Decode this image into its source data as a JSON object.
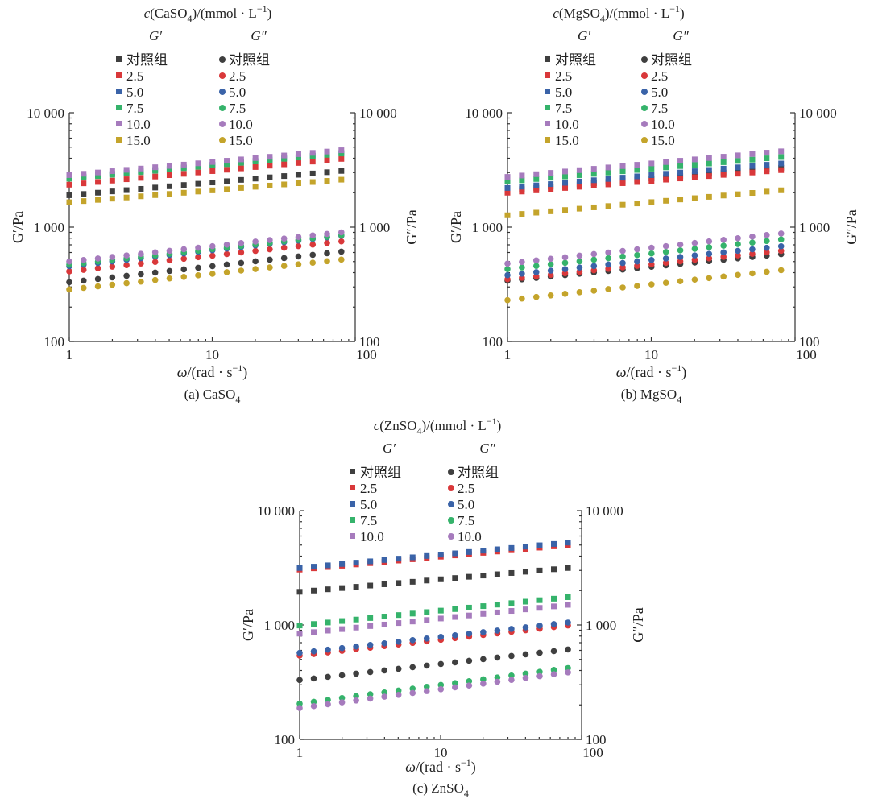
{
  "chart_data": [
    {
      "type": "scatter",
      "panel": "(a) CaSO4",
      "caption": "(a) CaSO",
      "caption_sub": "4",
      "legend_title_parts": [
        "c",
        "(CaSO",
        "4",
        ")/(mmol · L",
        "−1",
        ")"
      ],
      "legend_headers": [
        "G′",
        "G″"
      ],
      "ylabel_left": "G′/Pa",
      "ylabel_right": "G″/Pa",
      "xlabel_parts": [
        "ω",
        "/(rad · s",
        "−1",
        ")"
      ],
      "x_scale": "log",
      "y_scale": "log",
      "xlim": [
        1,
        100
      ],
      "ylim": [
        100,
        10000
      ],
      "xticks": [
        1,
        10,
        100
      ],
      "xtick_labels": [
        "1",
        "10",
        "100"
      ],
      "yticks": [
        100,
        1000,
        10000
      ],
      "ytick_labels": [
        "100",
        "1 000",
        "10 000"
      ],
      "omega_range": [
        1,
        80
      ],
      "series": [
        {
          "name": "对照组",
          "color": "#3f3f3f",
          "G_prime": [
            1900,
            3100
          ],
          "G_double_prime": [
            330,
            610
          ]
        },
        {
          "name": "2.5",
          "color": "#d9383a",
          "G_prime": [
            2350,
            3950
          ],
          "G_double_prime": [
            410,
            750
          ]
        },
        {
          "name": "5.0",
          "color": "#3a63a8",
          "G_prime": [
            2700,
            4450
          ],
          "G_double_prime": [
            455,
            840
          ]
        },
        {
          "name": "7.5",
          "color": "#35b36b",
          "G_prime": [
            2650,
            4400
          ],
          "G_double_prime": [
            470,
            850
          ]
        },
        {
          "name": "10.0",
          "color": "#a67bbd",
          "G_prime": [
            2850,
            4700
          ],
          "G_double_prime": [
            500,
            900
          ]
        },
        {
          "name": "15.0",
          "color": "#c4a42b",
          "G_prime": [
            1650,
            2600
          ],
          "G_double_prime": [
            285,
            520
          ]
        }
      ]
    },
    {
      "type": "scatter",
      "panel": "(b) MgSO4",
      "caption": "(b) MgSO",
      "caption_sub": "4",
      "legend_title_parts": [
        "c",
        "(MgSO",
        "4",
        ")/(mmol · L",
        "−1",
        ")"
      ],
      "legend_headers": [
        "G′",
        "G″"
      ],
      "ylabel_left": "G′/Pa",
      "ylabel_right": "G″/Pa",
      "xlabel_parts": [
        "ω",
        "/(rad · s",
        "−1",
        ")"
      ],
      "x_scale": "log",
      "y_scale": "log",
      "xlim": [
        1,
        100
      ],
      "ylim": [
        100,
        10000
      ],
      "xticks": [
        1,
        10,
        100
      ],
      "xtick_labels": [
        "1",
        "10",
        "100"
      ],
      "yticks": [
        100,
        1000,
        10000
      ],
      "ytick_labels": [
        "100",
        "1 000",
        "10 000"
      ],
      "omega_range": [
        1,
        80
      ],
      "series": [
        {
          "name": "对照组",
          "color": "#3f3f3f",
          "G_prime": [
            2100,
            3300
          ],
          "G_double_prime": [
            340,
            580
          ]
        },
        {
          "name": "2.5",
          "color": "#d9383a",
          "G_prime": [
            2000,
            3150
          ],
          "G_double_prime": [
            350,
            620
          ]
        },
        {
          "name": "5.0",
          "color": "#3a63a8",
          "G_prime": [
            2200,
            3600
          ],
          "G_double_prime": [
            380,
            680
          ]
        },
        {
          "name": "7.5",
          "color": "#35b36b",
          "G_prime": [
            2500,
            4100
          ],
          "G_double_prime": [
            430,
            780
          ]
        },
        {
          "name": "10.0",
          "color": "#a67bbd",
          "G_prime": [
            2750,
            4600
          ],
          "G_double_prime": [
            480,
            880
          ]
        },
        {
          "name": "15.0",
          "color": "#c4a42b",
          "G_prime": [
            1270,
            2100
          ],
          "G_double_prime": [
            230,
            420
          ]
        }
      ]
    },
    {
      "type": "scatter",
      "panel": "(c) ZnSO4",
      "caption": "(c) ZnSO",
      "caption_sub": "4",
      "legend_title_parts": [
        "c",
        "(ZnSO",
        "4",
        ")/(mmol · L",
        "−1",
        ")"
      ],
      "legend_headers": [
        "G′",
        "G″"
      ],
      "ylabel_left": "G′/Pa",
      "ylabel_right": "G″/Pa",
      "xlabel_parts": [
        "ω",
        "/(rad · s",
        "−1",
        ")"
      ],
      "x_scale": "log",
      "y_scale": "log",
      "xlim": [
        1,
        100
      ],
      "ylim": [
        100,
        10000
      ],
      "xticks": [
        1,
        10,
        100
      ],
      "xtick_labels": [
        "1",
        "10",
        "100"
      ],
      "yticks": [
        100,
        1000,
        10000
      ],
      "ytick_labels": [
        "100",
        "1 000",
        "10 000"
      ],
      "omega_range": [
        1,
        80
      ],
      "series": [
        {
          "name": "对照组",
          "color": "#3f3f3f",
          "G_prime": [
            1950,
            3150
          ],
          "G_double_prime": [
            330,
            610
          ]
        },
        {
          "name": "2.5",
          "color": "#d9383a",
          "G_prime": [
            3050,
            5000
          ],
          "G_double_prime": [
            540,
            990
          ]
        },
        {
          "name": "5.0",
          "color": "#3a63a8",
          "G_prime": [
            3150,
            5250
          ],
          "G_double_prime": [
            570,
            1050
          ]
        },
        {
          "name": "7.5",
          "color": "#35b36b",
          "G_prime": [
            990,
            1750
          ],
          "G_double_prime": [
            205,
            420
          ]
        },
        {
          "name": "10.0",
          "color": "#a67bbd",
          "G_prime": [
            840,
            1500
          ],
          "G_double_prime": [
            188,
            385
          ]
        }
      ]
    }
  ]
}
